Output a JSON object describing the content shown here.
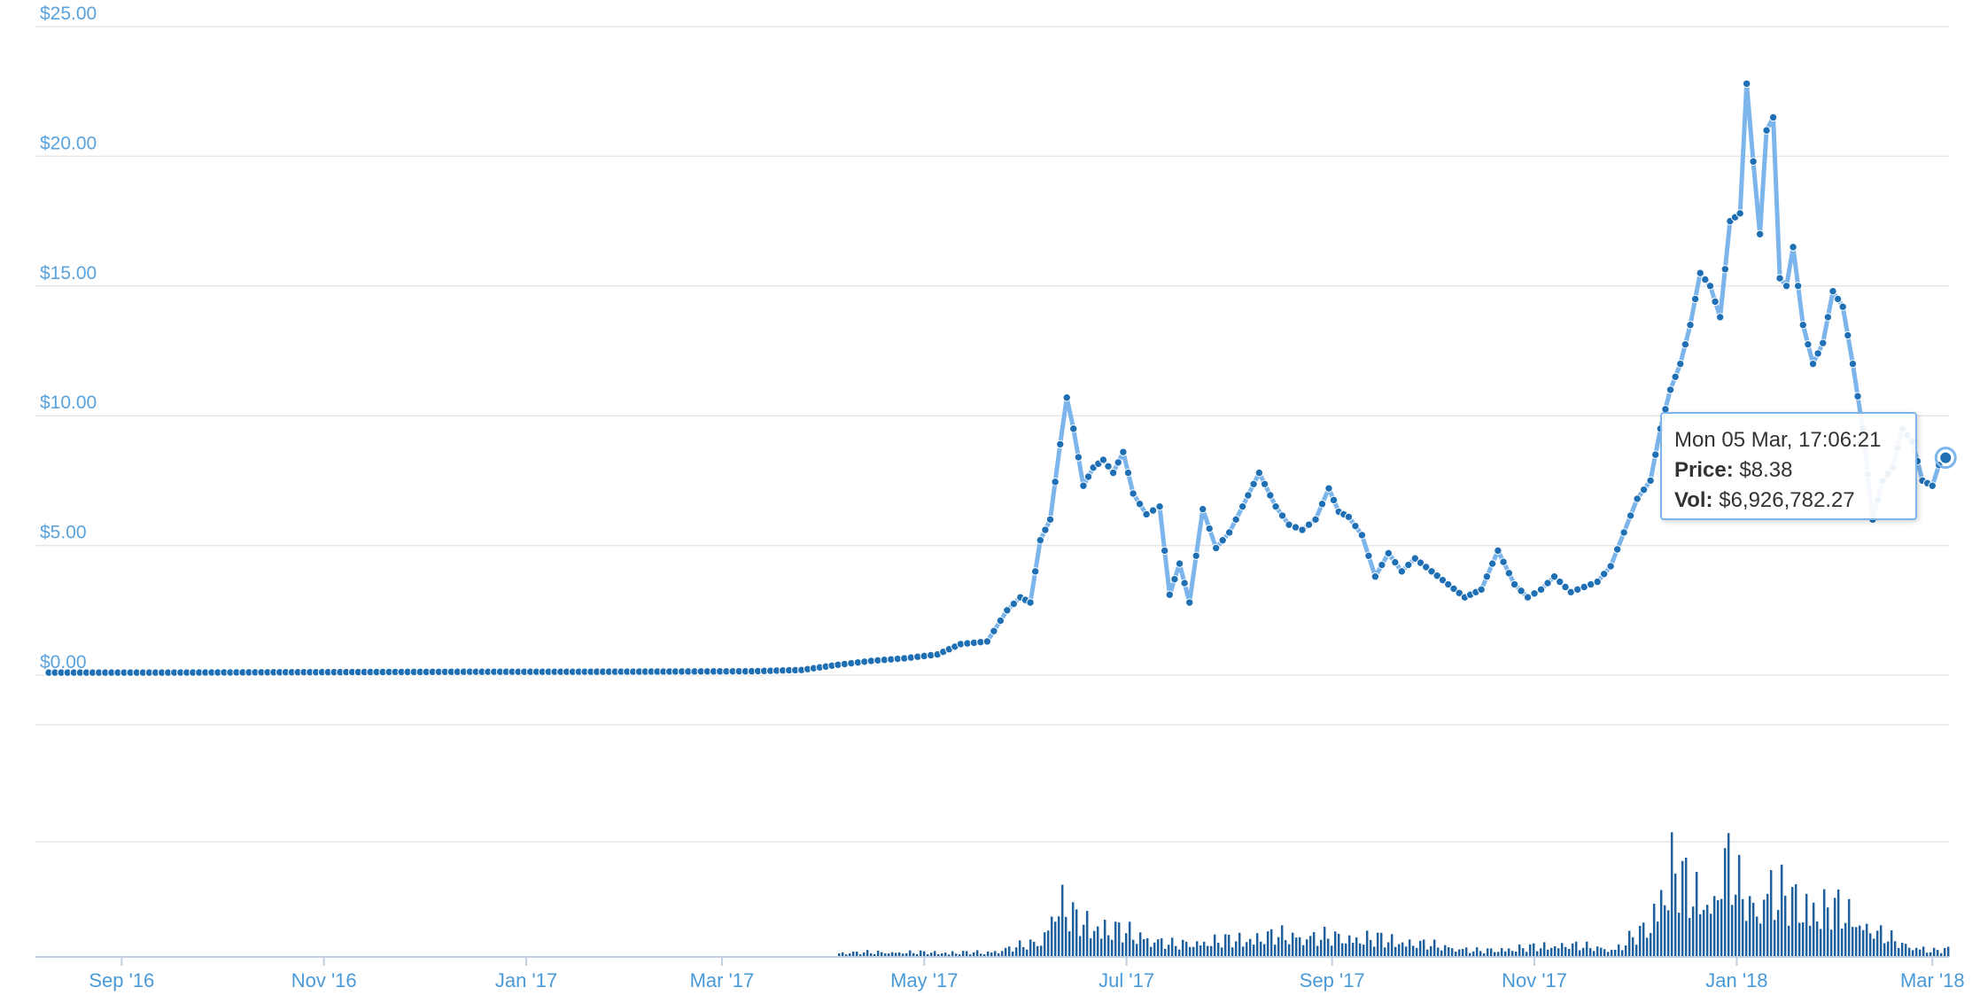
{
  "chart_data": {
    "type": "line",
    "colors": {
      "line": "#7cb5ec",
      "marker": "#1f6fb4",
      "volume": "#1e5f9e",
      "grid": "#e6e6e6",
      "axis_text": "#5aa3dd"
    },
    "y_ticks": [
      "$0.00",
      "$5.00",
      "$10.00",
      "$15.00",
      "$20.00",
      "$25.00"
    ],
    "ylim": [
      0,
      25
    ],
    "x_ticks": [
      "Sep '16",
      "Nov '16",
      "Jan '17",
      "Mar '17",
      "May '17",
      "Jul '17",
      "Sep '17",
      "Nov '17",
      "Jan '18",
      "Mar '18"
    ],
    "x_tick_dates": [
      "2016-09-01",
      "2016-11-01",
      "2017-01-01",
      "2017-03-01",
      "2017-05-01",
      "2017-07-01",
      "2017-09-01",
      "2017-11-01",
      "2018-01-01",
      "2018-03-01"
    ],
    "price_series": {
      "x": [
        "2016-08-10",
        "2016-09-15",
        "2016-10-15",
        "2016-11-15",
        "2016-12-15",
        "2017-01-15",
        "2017-02-15",
        "2017-03-10",
        "2017-03-25",
        "2017-04-05",
        "2017-04-15",
        "2017-04-25",
        "2017-05-05",
        "2017-05-12",
        "2017-05-20",
        "2017-05-26",
        "2017-05-30",
        "2017-06-02",
        "2017-06-05",
        "2017-06-08",
        "2017-06-11",
        "2017-06-13",
        "2017-06-15",
        "2017-06-18",
        "2017-06-21",
        "2017-06-24",
        "2017-06-27",
        "2017-06-30",
        "2017-07-03",
        "2017-07-07",
        "2017-07-11",
        "2017-07-14",
        "2017-07-17",
        "2017-07-20",
        "2017-07-24",
        "2017-07-28",
        "2017-08-01",
        "2017-08-05",
        "2017-08-10",
        "2017-08-15",
        "2017-08-19",
        "2017-08-23",
        "2017-08-27",
        "2017-08-31",
        "2017-09-03",
        "2017-09-06",
        "2017-09-10",
        "2017-09-14",
        "2017-09-18",
        "2017-09-22",
        "2017-09-26",
        "2017-10-01",
        "2017-10-06",
        "2017-10-11",
        "2017-10-16",
        "2017-10-21",
        "2017-10-26",
        "2017-10-30",
        "2017-11-03",
        "2017-11-07",
        "2017-11-12",
        "2017-11-16",
        "2017-11-20",
        "2017-11-24",
        "2017-11-28",
        "2017-12-02",
        "2017-12-06",
        "2017-12-09",
        "2017-12-12",
        "2017-12-15",
        "2017-12-18",
        "2017-12-21",
        "2017-12-24",
        "2017-12-27",
        "2017-12-30",
        "2018-01-02",
        "2018-01-04",
        "2018-01-06",
        "2018-01-08",
        "2018-01-10",
        "2018-01-12",
        "2018-01-14",
        "2018-01-16",
        "2018-01-18",
        "2018-01-21",
        "2018-01-24",
        "2018-01-27",
        "2018-01-30",
        "2018-02-02",
        "2018-02-05",
        "2018-02-08",
        "2018-02-11",
        "2018-02-14",
        "2018-02-17",
        "2018-02-20",
        "2018-02-23",
        "2018-02-26",
        "2018-03-01",
        "2018-03-03",
        "2018-03-05"
      ],
      "y": [
        0.1,
        0.1,
        0.11,
        0.12,
        0.13,
        0.13,
        0.14,
        0.15,
        0.2,
        0.4,
        0.55,
        0.65,
        0.8,
        1.2,
        1.3,
        2.5,
        3.0,
        2.8,
        5.2,
        6.0,
        8.9,
        10.7,
        9.5,
        7.3,
        8.0,
        8.3,
        7.8,
        8.6,
        7.0,
        6.2,
        6.5,
        3.1,
        4.3,
        2.8,
        6.4,
        4.9,
        5.5,
        6.5,
        7.8,
        6.5,
        5.8,
        5.6,
        6.0,
        7.2,
        6.3,
        6.1,
        5.4,
        3.8,
        4.7,
        4.0,
        4.5,
        4.0,
        3.5,
        3.0,
        3.3,
        4.8,
        3.5,
        3.0,
        3.3,
        3.8,
        3.2,
        3.4,
        3.6,
        4.2,
        5.5,
        6.8,
        7.5,
        9.5,
        11.0,
        12.0,
        13.5,
        15.5,
        15.0,
        13.8,
        17.5,
        17.8,
        22.8,
        19.8,
        17.0,
        21.0,
        21.5,
        15.3,
        15.0,
        16.5,
        13.5,
        12.0,
        12.8,
        14.8,
        14.2,
        12.0,
        9.5,
        6.0,
        7.5,
        8.0,
        9.5,
        9.0,
        7.5,
        7.3,
        8.1,
        8.38
      ]
    },
    "volume_series": {
      "x": [
        "2017-04-05",
        "2017-05-20",
        "2017-06-05",
        "2017-06-10",
        "2017-06-15",
        "2017-07-15",
        "2017-08-15",
        "2017-09-15",
        "2017-10-15",
        "2017-11-10",
        "2017-11-25",
        "2017-12-05",
        "2017-12-12",
        "2017-12-18",
        "2017-12-25",
        "2017-12-28",
        "2018-01-02",
        "2018-01-07",
        "2018-01-10",
        "2018-01-16",
        "2018-01-22",
        "2018-02-01",
        "2018-02-10",
        "2018-02-20",
        "2018-03-01",
        "2018-03-05"
      ],
      "relative": [
        0.03,
        0.03,
        0.1,
        0.36,
        0.25,
        0.08,
        0.14,
        0.12,
        0.04,
        0.08,
        0.05,
        0.2,
        0.6,
        0.42,
        0.35,
        0.64,
        0.42,
        0.3,
        0.47,
        0.38,
        0.35,
        0.31,
        0.18,
        0.08,
        0.04,
        0.05
      ]
    },
    "tooltip": {
      "title": "Mon 05 Mar, 17:06:21",
      "price_label": "Price:",
      "price_value": "$8.38",
      "vol_label": "Vol:",
      "vol_value": "$6,926,782.27"
    }
  }
}
